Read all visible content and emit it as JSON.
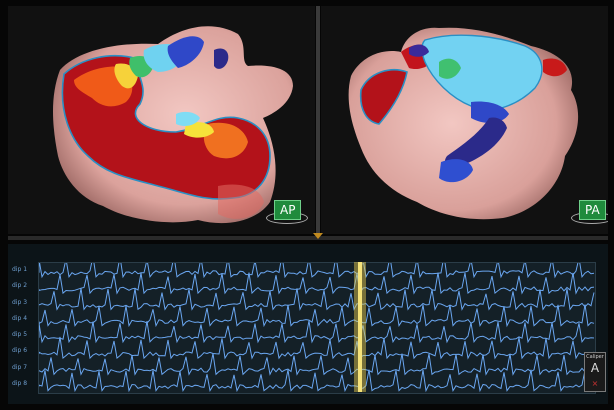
{
  "views": {
    "left": {
      "badge": "AP"
    },
    "right": {
      "badge": "PA"
    }
  },
  "egm": {
    "leads": [
      "dip 1",
      "dip 2",
      "dip 3",
      "dip 4",
      "dip 5",
      "dip 6",
      "dip 7",
      "dip 8"
    ],
    "trace_color": "#6aa6f0",
    "marker_color": "#f5e27a",
    "marker_position_fraction": 0.58
  },
  "caliper": {
    "title": "Caliper",
    "glyph": "A",
    "close": "×"
  },
  "colors": {
    "map_red": "#b3121a",
    "map_orange": "#f46a1a",
    "map_yellow": "#f6e23a",
    "map_green": "#3fbf6a",
    "map_cyan": "#6fd2f0",
    "map_blue": "#2f48c8",
    "map_purple": "#3a2a9a",
    "tissue": "#e8b4b0",
    "badge_green": "#1f8b3c"
  }
}
